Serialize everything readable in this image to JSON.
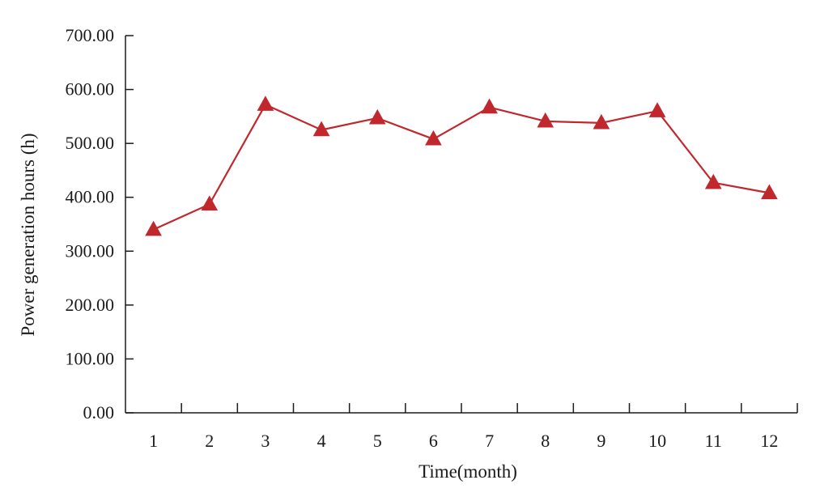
{
  "chart_data": {
    "type": "line",
    "title": "",
    "xlabel": "Time(month)",
    "ylabel": "Power generation hours (h)",
    "categories": [
      "1",
      "2",
      "3",
      "4",
      "5",
      "6",
      "7",
      "8",
      "9",
      "10",
      "11",
      "12"
    ],
    "y_ticks": [
      "0.00",
      "100.00",
      "200.00",
      "300.00",
      "400.00",
      "500.00",
      "600.00",
      "700.00"
    ],
    "ylim": [
      0,
      700
    ],
    "grid": false,
    "legend": "none",
    "series": [
      {
        "color": "#c0282d",
        "marker": "triangle",
        "values": [
          340,
          387,
          572,
          525,
          547,
          508,
          567,
          541,
          538,
          560,
          427,
          408
        ]
      }
    ]
  }
}
